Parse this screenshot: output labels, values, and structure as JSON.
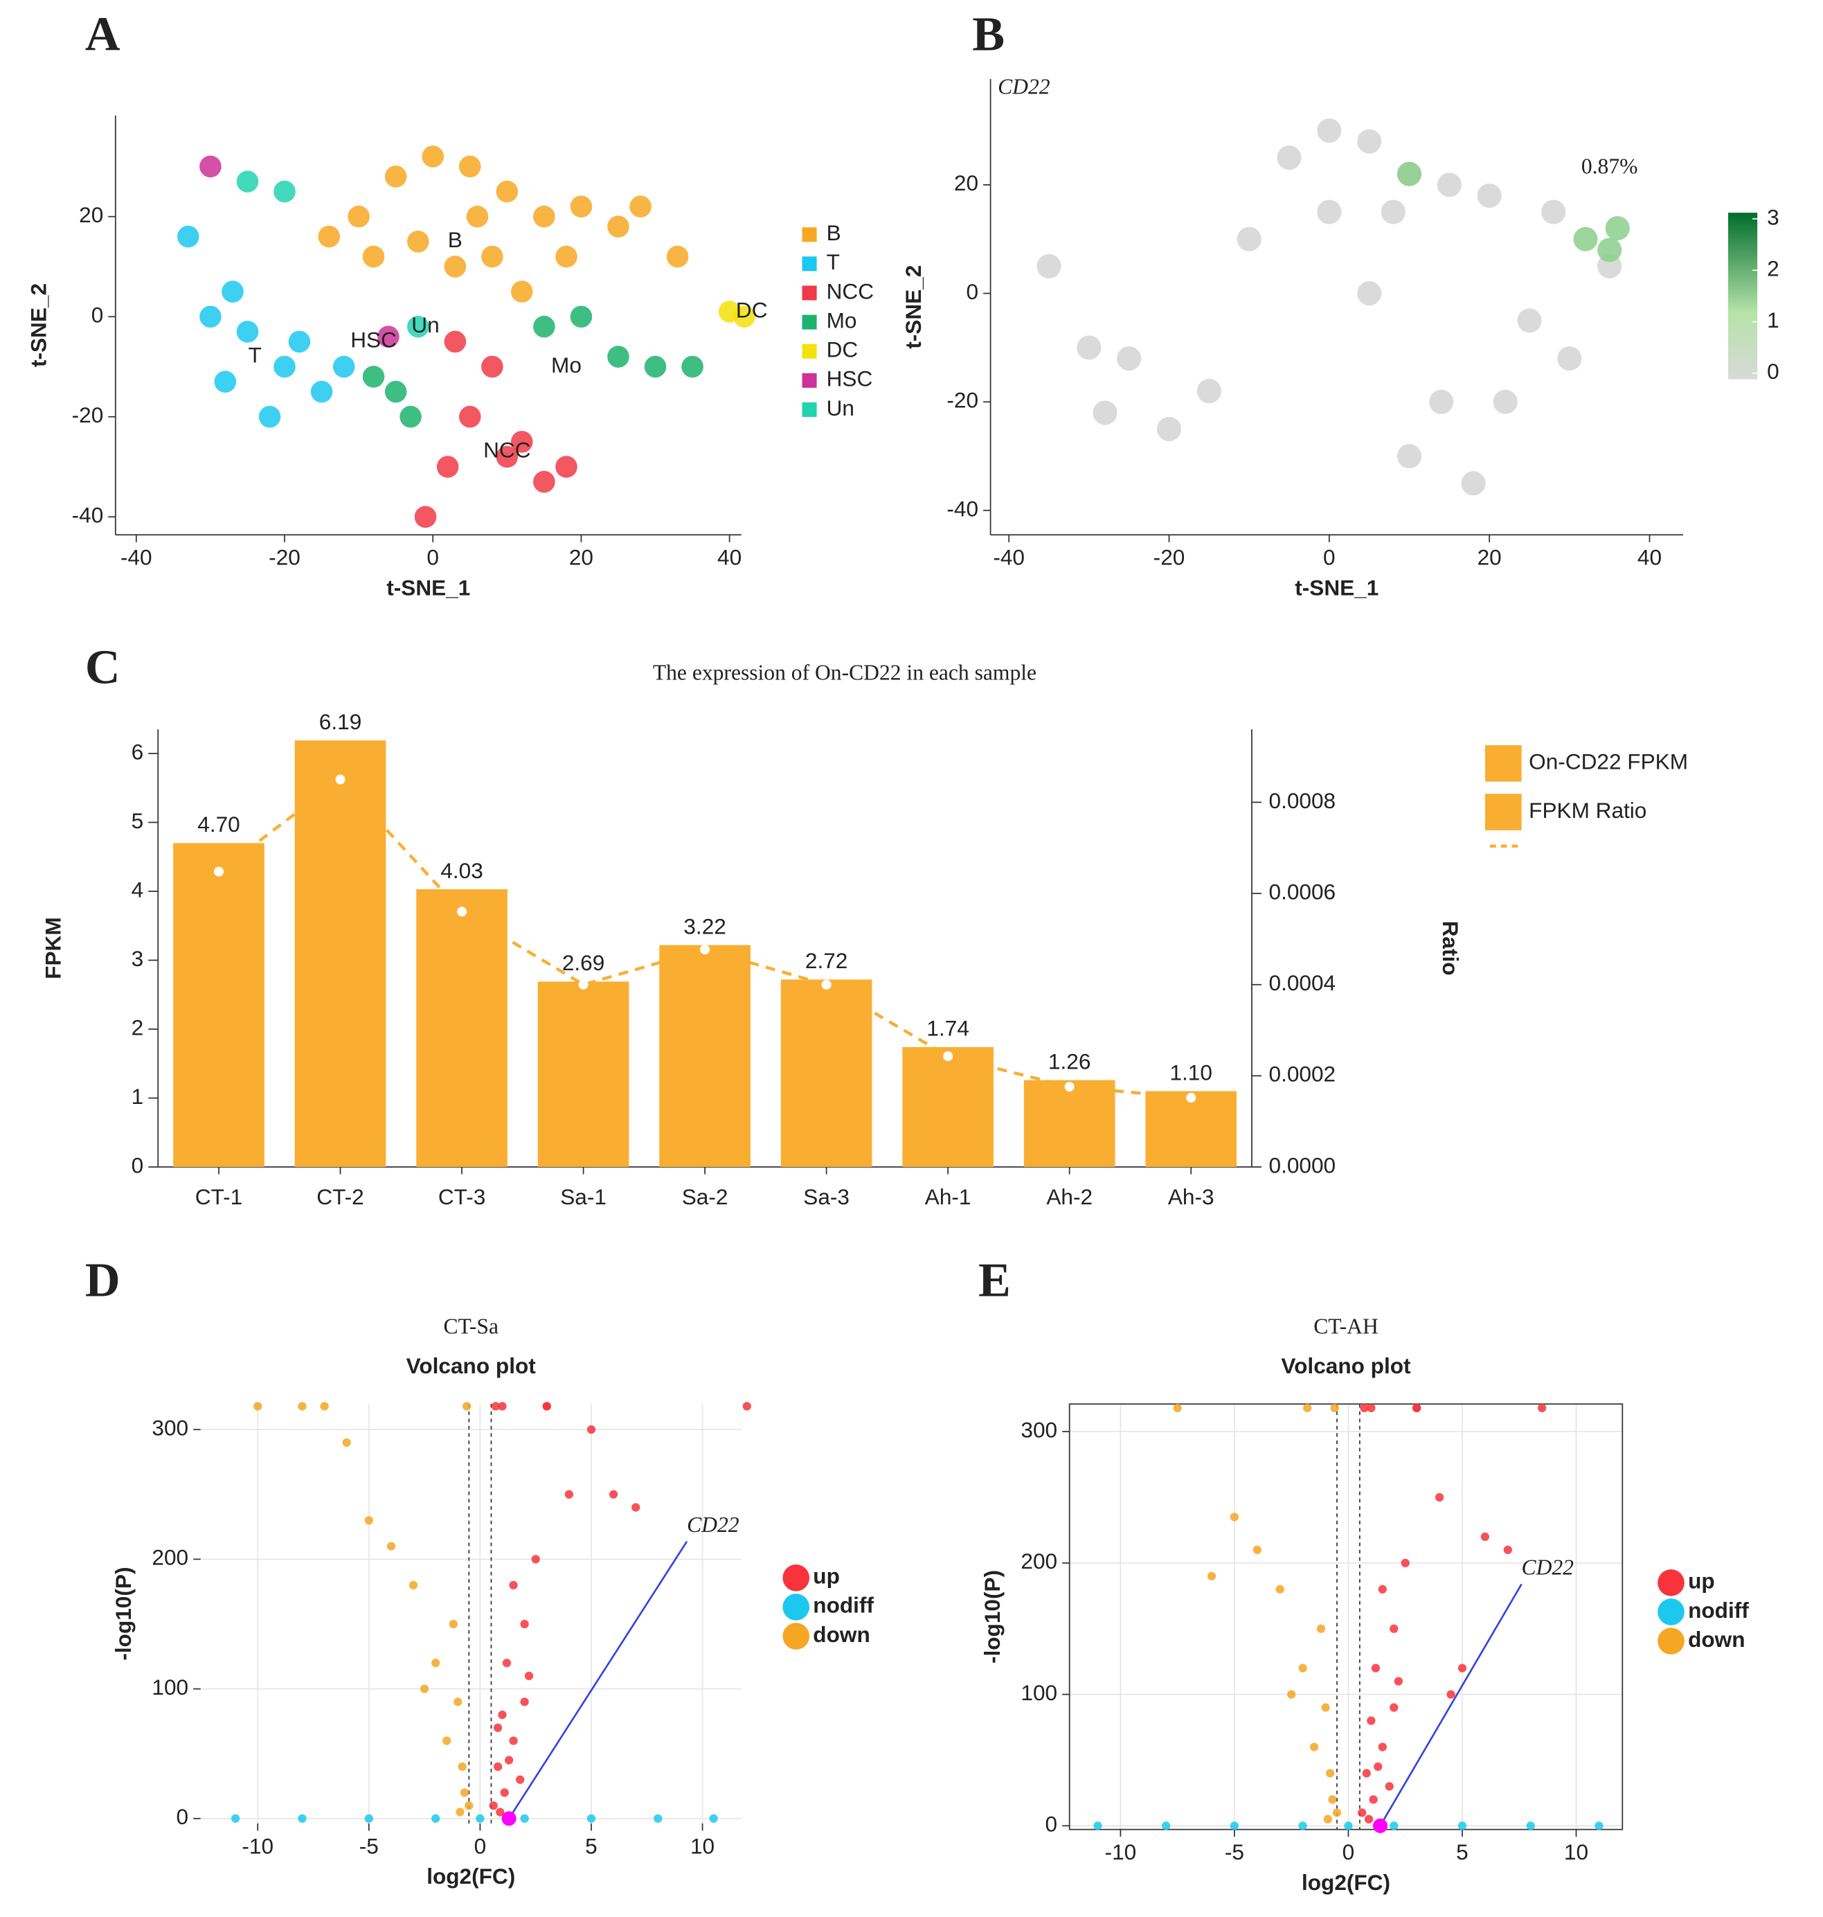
{
  "chart_data": [
    {
      "type": "scatter",
      "label": "A",
      "xlabel": "t-SNE_1",
      "ylabel": "t-SNE_2",
      "xlim": [
        -42.8,
        41.6
      ],
      "ylim": [
        -43.6,
        40.2
      ],
      "xticks": [
        -40,
        -20,
        0,
        20,
        40
      ],
      "yticks": [
        -40,
        -20,
        0,
        20
      ],
      "grid": false,
      "frame": false,
      "legend_marker": "square",
      "series": [
        {
          "name": "B",
          "color": "#F7A823",
          "x": [
            -10,
            -5,
            0,
            5,
            10,
            15,
            20,
            -2,
            8,
            3,
            25,
            33,
            12,
            -8,
            -14,
            28,
            18,
            6
          ],
          "values": [
            20,
            28,
            32,
            30,
            25,
            20,
            22,
            15,
            12,
            10,
            18,
            12,
            5,
            12,
            16,
            22,
            12,
            20
          ]
        },
        {
          "name": "T",
          "color": "#1CC8F0",
          "x": [
            -30,
            -25,
            -20,
            -15,
            -22,
            -28,
            -18,
            -33,
            -27,
            -12
          ],
          "values": [
            0,
            -3,
            -10,
            -15,
            -20,
            -13,
            -5,
            16,
            5,
            -10
          ]
        },
        {
          "name": "NCC",
          "color": "#F03A47",
          "x": [
            5,
            10,
            15,
            8,
            12,
            -1,
            3,
            18,
            2
          ],
          "values": [
            -20,
            -28,
            -33,
            -10,
            -25,
            -40,
            -5,
            -30,
            -30
          ]
        },
        {
          "name": "Mo",
          "color": "#1DB36E",
          "x": [
            15,
            25,
            30,
            20,
            -5,
            -3,
            -8,
            35
          ],
          "values": [
            -2,
            -8,
            -10,
            0,
            -15,
            -20,
            -12,
            -10
          ]
        },
        {
          "name": "DC",
          "color": "#F5E10A",
          "x": [
            40,
            42
          ],
          "values": [
            1,
            0
          ]
        },
        {
          "name": "HSC",
          "color": "#CC3399",
          "x": [
            -6,
            -30
          ],
          "values": [
            -4,
            30
          ]
        },
        {
          "name": "Un",
          "color": "#22D3B0",
          "x": [
            -2,
            -25,
            -20
          ],
          "values": [
            -2,
            27,
            25
          ]
        }
      ],
      "labels": [
        {
          "text": "B",
          "x": 3,
          "y": 15
        },
        {
          "text": "T",
          "x": -24,
          "y": -8
        },
        {
          "text": "NCC",
          "x": 10,
          "y": -27
        },
        {
          "text": "Mo",
          "x": 18,
          "y": -10
        },
        {
          "text": "DC",
          "x": 43,
          "y": 1
        },
        {
          "text": "HSC",
          "x": -8,
          "y": -5
        },
        {
          "text": "Un",
          "x": -1,
          "y": -2
        }
      ]
    },
    {
      "type": "scatter",
      "label": "B",
      "title": "CD22",
      "xlabel": "t-SNE_1",
      "ylabel": "t-SNE_2",
      "xlim": [
        -42.3,
        44.2
      ],
      "ylim": [
        -44.5,
        39.5
      ],
      "xticks": [
        -40,
        -20,
        0,
        20,
        40
      ],
      "yticks": [
        -40,
        -20,
        0,
        20
      ],
      "grid": false,
      "frame": false,
      "series": [
        {
          "color": "#D3D3D3",
          "x": [
            -25,
            -15,
            -30,
            -5,
            0,
            5,
            10,
            15,
            20,
            25,
            30,
            -20,
            10,
            18,
            22,
            5,
            -35,
            35,
            -10,
            0,
            -28,
            8,
            14,
            28
          ],
          "values": [
            -12,
            -18,
            -10,
            25,
            30,
            28,
            22,
            20,
            18,
            -5,
            -12,
            -25,
            -30,
            -35,
            -20,
            0,
            5,
            5,
            10,
            15,
            -22,
            15,
            -20,
            15
          ]
        },
        {
          "color": "#8CCF8C",
          "x": [
            32,
            35,
            36,
            10
          ],
          "values": [
            10,
            8,
            12,
            22
          ]
        }
      ],
      "labels": [
        {
          "text": "0.87%",
          "x": 35,
          "y": 23
        }
      ],
      "colorbar": {
        "lim": [
          0,
          3
        ],
        "ticks": [
          0,
          1,
          2,
          3
        ]
      }
    },
    {
      "type": "bar",
      "label": "C",
      "title": "The expression of On-CD22 in each sample",
      "ylabel": "FPKM",
      "y2label": "Ratio",
      "categories": [
        "CT-1",
        "CT-2",
        "CT-3",
        "Sa-1",
        "Sa-2",
        "Sa-3",
        "Ah-1",
        "Ah-2",
        "Ah-3"
      ],
      "ylim": [
        0,
        6.35
      ],
      "yticks": [
        0,
        1,
        2,
        3,
        4,
        5,
        6
      ],
      "y2lim": [
        0,
        0.00096
      ],
      "y2ticks": [
        {
          "value": 0,
          "label": "0.0000"
        },
        {
          "value": 0.0002,
          "label": "0.0002"
        },
        {
          "value": 0.0004,
          "label": "0.0004"
        },
        {
          "value": 0.0006,
          "label": "0.0006"
        },
        {
          "value": 0.0008,
          "label": "0.0008"
        }
      ],
      "series": [
        {
          "name": "On-CD22 FPKM",
          "color": "#F9AE32",
          "values": [
            4.7,
            6.19,
            4.03,
            2.69,
            3.22,
            2.72,
            1.74,
            1.26,
            1.1
          ],
          "value_labels": [
            "4.70",
            "6.19",
            "4.03",
            "2.69",
            "3.22",
            "2.72",
            "1.74",
            "1.26",
            "1.10"
          ]
        },
        {
          "name": "FPKM Ratio",
          "color": "#F9AE32",
          "axis": "y2",
          "values": [
            0.000648,
            0.00085,
            0.00056,
            0.0004,
            0.000477,
            0.0004,
            0.000243,
            0.000176,
            0.000152
          ]
        }
      ]
    },
    {
      "type": "scatter",
      "label": "D",
      "subtitle": "CT-Sa",
      "title": "Volcano plot",
      "xlabel": "log2(FC)",
      "ylabel": "-log10(P)",
      "xlim": [
        -12.57,
        11.75
      ],
      "ylim": [
        -3.75,
        319.7
      ],
      "xticks": [
        -10,
        -5,
        0,
        5,
        10
      ],
      "yticks": [
        0,
        100,
        200,
        300
      ],
      "grid": true,
      "frame": false,
      "legend_marker": "circle",
      "vlines": [
        -0.5,
        0.5
      ],
      "series": [
        {
          "name": "up",
          "color": "#F8333C",
          "x": [
            0.6,
            0.8,
            1,
            1.2,
            1.5,
            2,
            2.5,
            3,
            4,
            5,
            6,
            7,
            12,
            1,
            1.5,
            2,
            3,
            1.8,
            0.7,
            0.9,
            1.1,
            1.3,
            0.8,
            2.2
          ],
          "values": [
            10,
            40,
            80,
            120,
            60,
            150,
            200,
            318,
            250,
            300,
            250,
            240,
            318,
            318,
            180,
            90,
            318,
            30,
            318,
            5,
            20,
            45,
            70,
            110
          ]
        },
        {
          "name": "nodiff",
          "color": "#1CC8EE",
          "x": [
            -11,
            -8,
            -5,
            -2,
            0,
            2,
            5,
            8,
            10.5
          ],
          "values": [
            0,
            0,
            0,
            0,
            0,
            0,
            0,
            0,
            0
          ]
        },
        {
          "name": "down",
          "color": "#F5A623",
          "x": [
            -0.5,
            -0.8,
            -1,
            -1.5,
            -2,
            -3,
            -4,
            -5,
            -6,
            -7,
            -8,
            -10,
            -0.6,
            -1.2,
            -2.5,
            -0.7,
            -0.9
          ],
          "values": [
            10,
            40,
            90,
            60,
            120,
            180,
            210,
            230,
            290,
            318,
            318,
            318,
            318,
            150,
            100,
            20,
            5
          ]
        }
      ],
      "highlight": {
        "x": 1.3,
        "y": 0,
        "color": "#FF00FF"
      },
      "annotation": {
        "text": "CD22",
        "x": 9.3,
        "y": 225
      }
    },
    {
      "type": "scatter",
      "label": "E",
      "subtitle": "CT-AH",
      "title": "Volcano plot",
      "xlabel": "log2(FC)",
      "ylabel": "-log10(P)",
      "xlim": [
        -12.24,
        12.03
      ],
      "ylim": [
        -2.8,
        321
      ],
      "xticks": [
        -10,
        -5,
        0,
        5,
        10
      ],
      "yticks": [
        0,
        100,
        200,
        300
      ],
      "grid": true,
      "frame": true,
      "legend_marker": "circle",
      "vlines": [
        -0.5,
        0.5
      ],
      "series": [
        {
          "name": "up",
          "color": "#F8333C",
          "x": [
            0.6,
            0.8,
            1,
            1.2,
            1.5,
            2,
            2.5,
            3,
            4,
            5,
            6,
            7,
            8.5,
            1,
            1.5,
            2,
            3,
            1.8,
            0.7,
            0.9,
            1.1,
            1.3,
            4.5,
            2.2
          ],
          "values": [
            10,
            40,
            80,
            120,
            60,
            150,
            200,
            318,
            250,
            120,
            220,
            210,
            318,
            318,
            180,
            90,
            318,
            30,
            318,
            5,
            20,
            45,
            100,
            110
          ]
        },
        {
          "name": "nodiff",
          "color": "#1CC8EE",
          "x": [
            -11,
            -8,
            -5,
            -2,
            0,
            2,
            5,
            8,
            11
          ],
          "values": [
            0,
            0,
            0,
            0,
            0,
            0,
            0,
            0,
            0
          ]
        },
        {
          "name": "down",
          "color": "#F5A623",
          "x": [
            -0.5,
            -0.8,
            -1,
            -1.5,
            -2,
            -3,
            -4,
            -5,
            -6,
            -7.5,
            -0.6,
            -1.2,
            -2.5,
            -0.7,
            -0.9,
            -1.8
          ],
          "values": [
            10,
            40,
            90,
            60,
            120,
            180,
            210,
            235,
            190,
            318,
            318,
            150,
            100,
            20,
            5,
            318
          ]
        }
      ],
      "highlight": {
        "x": 1.4,
        "y": 0,
        "color": "#FF00FF"
      },
      "annotation": {
        "text": "CD22",
        "x": 7.6,
        "y": 195
      }
    }
  ]
}
